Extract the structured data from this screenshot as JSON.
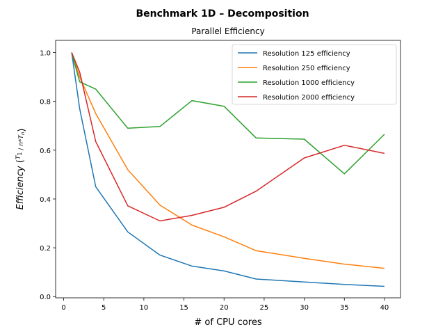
{
  "chart_data": {
    "type": "line",
    "title": "Benchmark 1D – Decomposition",
    "subtitle": "Parallel Efficiency",
    "xlabel": "# of CPU cores",
    "ylabel": "Efficiency",
    "ylabel_formula": "(T1 / (n * Tn))",
    "xlim": [
      -1,
      42
    ],
    "ylim": [
      -0.005,
      1.05
    ],
    "xticks": [
      0,
      5,
      10,
      15,
      20,
      25,
      30,
      35,
      40
    ],
    "yticks": [
      0.0,
      0.2,
      0.4,
      0.6,
      0.8,
      1.0
    ],
    "x": [
      1,
      2,
      4,
      8,
      12,
      16,
      20,
      24,
      30,
      35,
      40
    ],
    "series": [
      {
        "name": "Resolution 125 efficiency",
        "color": "#1f77b4",
        "values": [
          1.0,
          0.77,
          0.45,
          0.265,
          0.17,
          0.125,
          0.105,
          0.072,
          0.06,
          0.05,
          0.042
        ]
      },
      {
        "name": "Resolution 250 efficiency",
        "color": "#ff7f0e",
        "values": [
          1.0,
          0.9,
          0.75,
          0.52,
          0.375,
          0.293,
          0.245,
          0.188,
          0.157,
          0.133,
          0.116
        ]
      },
      {
        "name": "Resolution 1000 efficiency",
        "color": "#2ca02c",
        "values": [
          1.0,
          0.88,
          0.85,
          0.69,
          0.697,
          0.803,
          0.78,
          0.65,
          0.645,
          0.503,
          0.665
        ]
      },
      {
        "name": "Resolution 2000 efficiency",
        "color": "#d62728",
        "values": [
          1.0,
          0.92,
          0.635,
          0.372,
          0.31,
          0.333,
          0.366,
          0.432,
          0.568,
          0.62,
          0.587
        ]
      }
    ],
    "legend_position": "top-right",
    "grid": false
  }
}
